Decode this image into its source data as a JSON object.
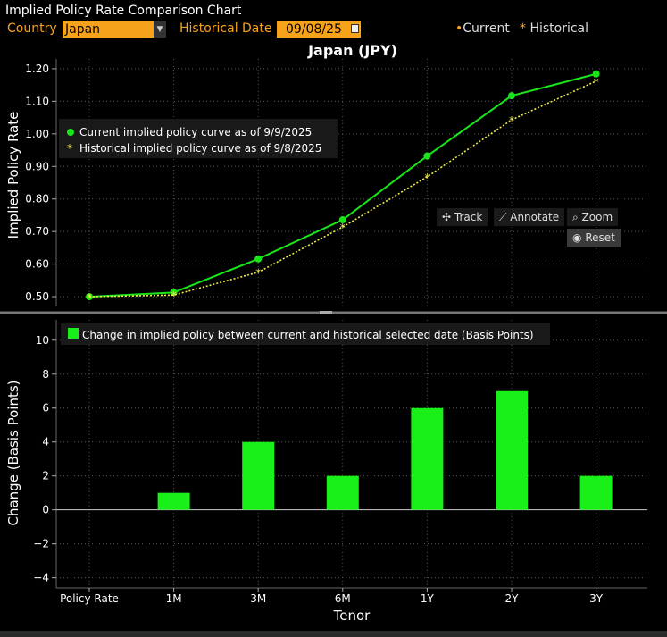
{
  "window": {
    "title": "Implied Policy Rate Comparison Chart"
  },
  "controls": {
    "country_label": "Country",
    "country_value": "Japan",
    "historical_date_label": "Historical Date",
    "historical_date_value": "09/08/25"
  },
  "top_legend": {
    "current": "Current",
    "historical": "Historical"
  },
  "toolbar": {
    "track": "Track",
    "annotate": "Annotate",
    "zoom": "Zoom",
    "reset": "Reset"
  },
  "colors": {
    "current": "#19e619",
    "historical": "#f0e94a",
    "bars": "#19f019",
    "accent": "#f7a21b"
  },
  "chart_data": [
    {
      "type": "line",
      "title": "Japan (JPY)",
      "ylabel": "Implied Policy Rate",
      "xlabel": "",
      "categories": [
        "Policy Rate",
        "1M",
        "3M",
        "6M",
        "1Y",
        "2Y",
        "3Y"
      ],
      "ylim": [
        0.47,
        1.23
      ],
      "yticks": [
        "0.50",
        "0.60",
        "0.70",
        "0.80",
        "0.90",
        "1.00",
        "1.10",
        "1.20"
      ],
      "grid": true,
      "legend_position": "upper-left",
      "series": [
        {
          "name": "Current implied policy curve as of 9/9/2025",
          "values": [
            0.5,
            0.513,
            0.616,
            0.736,
            0.932,
            1.117,
            1.184
          ]
        },
        {
          "name": "Historical implied policy curve as of 9/8/2025",
          "values": [
            0.5,
            0.505,
            0.575,
            0.714,
            0.868,
            1.043,
            1.162
          ]
        }
      ]
    },
    {
      "type": "bar",
      "ylabel": "Change (Basis Points)",
      "xlabel": "Tenor",
      "categories": [
        "Policy Rate",
        "1M",
        "3M",
        "6M",
        "1Y",
        "2Y",
        "3Y"
      ],
      "ylim": [
        -4.6,
        11.2
      ],
      "yticks": [
        "−4",
        "−2",
        "0",
        "2",
        "4",
        "6",
        "8",
        "10"
      ],
      "grid": true,
      "legend_position": "upper-left",
      "series": [
        {
          "name": "Change in implied policy between current and historical selected date (Basis Points)",
          "values": [
            0,
            1,
            4,
            2,
            6,
            7,
            2
          ]
        }
      ]
    }
  ]
}
